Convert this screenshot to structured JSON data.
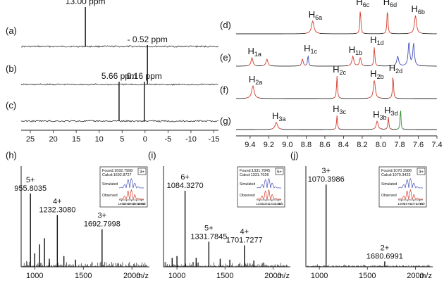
{
  "chart_data": [
    {
      "id": "p31",
      "type": "line",
      "x_axis": {
        "ticks": [
          25,
          20,
          15,
          10,
          5,
          0,
          -5,
          -10,
          -15
        ],
        "range": [
          27,
          -16
        ],
        "reversed": true
      },
      "spectra": [
        {
          "label": "(a)",
          "peaks": [
            {
              "x": 13.0,
              "h": 1.0,
              "text": "13.00 ppm"
            }
          ]
        },
        {
          "label": "(b)",
          "peaks": [
            {
              "x": -0.52,
              "h": 1.0,
              "text": "- 0.52 ppm"
            }
          ]
        },
        {
          "label": "(c)",
          "peaks": [
            {
              "x": 5.66,
              "h": 1.0,
              "text": "5.66 ppm"
            },
            {
              "x": 0.16,
              "h": 1.0,
              "text": "0.16 ppm"
            }
          ]
        }
      ]
    },
    {
      "id": "h1",
      "type": "line",
      "x_axis": {
        "ticks": [
          9.4,
          9.2,
          9.0,
          8.8,
          8.6,
          8.4,
          8.2,
          8.0,
          7.8,
          7.6,
          7.4
        ],
        "range": [
          9.55,
          7.4
        ],
        "reversed": true
      },
      "spectra": [
        {
          "label": "(d)",
          "peaks": [
            {
              "x": 8.73,
              "h": 0.45,
              "w": 0.016,
              "color": "#d43a2a",
              "text": "H6a",
              "sub": "6a"
            },
            {
              "x": 8.22,
              "h": 0.9,
              "w": 0.006,
              "color": "#d43a2a",
              "text": "H6c",
              "sub": "6c"
            },
            {
              "x": 7.93,
              "h": 0.9,
              "w": 0.006,
              "color": "#d43a2a",
              "text": "H6d",
              "sub": "6d"
            },
            {
              "x": 7.63,
              "h": 0.65,
              "w": 0.013,
              "color": "#d43a2a",
              "text": "H6b",
              "sub": "6b"
            }
          ]
        },
        {
          "label": "(e)",
          "peaks": [
            {
              "x": 9.38,
              "h": 0.3,
              "w": 0.012,
              "color": "#d43a2a",
              "text": "H1a",
              "sub": "1a"
            },
            {
              "x": 9.22,
              "h": 0.25,
              "w": 0.012,
              "color": "#d43a2a",
              "text": "",
              "sub": ""
            },
            {
              "x": 8.84,
              "h": 0.25,
              "w": 0.01,
              "color": "#d43a2a",
              "text": "",
              "sub": ""
            },
            {
              "x": 8.78,
              "h": 0.4,
              "w": 0.006,
              "color": "#4750b8",
              "text": "H1c",
              "sub": "1c"
            },
            {
              "x": 8.3,
              "h": 0.35,
              "w": 0.012,
              "color": "#d43a2a",
              "text": "H1b",
              "sub": "1b"
            },
            {
              "x": 8.22,
              "h": 0.3,
              "w": 0.01,
              "color": "#d43a2a",
              "text": "",
              "sub": ""
            },
            {
              "x": 8.07,
              "h": 0.7,
              "w": 0.006,
              "color": "#d43a2a",
              "text": "H1d",
              "sub": "1d"
            },
            {
              "x": 7.82,
              "h": 0.35,
              "w": 0.012,
              "color": "#4750b8",
              "text": "",
              "sub": ""
            },
            {
              "x": 7.7,
              "h": 0.85,
              "w": 0.01,
              "color": "#4750b8",
              "text": "",
              "sub": ""
            },
            {
              "x": 7.65,
              "h": 0.8,
              "w": 0.01,
              "color": "#4750b8",
              "text": "",
              "sub": ""
            }
          ]
        },
        {
          "label": "(f)",
          "peaks": [
            {
              "x": 9.37,
              "h": 0.45,
              "w": 0.016,
              "color": "#d43a2a",
              "text": "H2a",
              "sub": "2a"
            },
            {
              "x": 8.47,
              "h": 0.8,
              "w": 0.006,
              "color": "#d43a2a",
              "text": "H2c",
              "sub": "2c"
            },
            {
              "x": 8.07,
              "h": 0.65,
              "w": 0.012,
              "color": "#d43a2a",
              "text": "H2b",
              "sub": "2b"
            },
            {
              "x": 7.87,
              "h": 0.85,
              "w": 0.006,
              "color": "#d43a2a",
              "text": "H2d",
              "sub": "2d"
            }
          ]
        },
        {
          "label": "(g)",
          "peaks": [
            {
              "x": 9.12,
              "h": 0.25,
              "w": 0.016,
              "color": "#d43a2a",
              "text": "H3a",
              "sub": "3a"
            },
            {
              "x": 8.47,
              "h": 0.5,
              "w": 0.006,
              "color": "#d43a2a",
              "text": "H3c",
              "sub": "3c"
            },
            {
              "x": 8.04,
              "h": 0.3,
              "w": 0.012,
              "color": "#d43a2a",
              "text": "H3b",
              "sub": "3b"
            },
            {
              "x": 7.92,
              "h": 0.45,
              "w": 0.006,
              "color": "#d43a2a",
              "text": "H3d",
              "sub": "3d"
            },
            {
              "x": 7.79,
              "h": 0.8,
              "w": 0.005,
              "color": "#2e8a2e",
              "text": "",
              "sub": ""
            }
          ]
        }
      ]
    },
    {
      "id": "h",
      "label": "(h)",
      "type": "bar",
      "x_axis": {
        "ticks": [
          1000,
          1500,
          2000
        ],
        "range": [
          860,
          2180
        ],
        "unit": "m/z"
      },
      "peaks": [
        {
          "x": 955.8035,
          "h": 0.82,
          "text": "955.8035",
          "charge": "5+"
        },
        {
          "x": 1232.308,
          "h": 0.58,
          "text": "1232.3080",
          "charge": "4+"
        },
        {
          "x": 1692.7998,
          "h": 0.42,
          "text": "1692.7998",
          "charge": "3+"
        },
        {
          "x": 1050,
          "h": 0.25
        },
        {
          "x": 1100,
          "h": 0.32
        },
        {
          "x": 1300,
          "h": 0.12
        },
        {
          "x": 1000,
          "h": 0.15
        },
        {
          "x": 1150,
          "h": 0.09
        },
        {
          "x": 1420,
          "h": 0.08
        }
      ],
      "inset": {
        "found": "Found:1692.7998",
        "calcd": "Calcd:1692.8727",
        "charge": "3+",
        "simulated": "Simulated",
        "observed": "Observed",
        "ticks": [
          "1691",
          "1692",
          "1693",
          "1694",
          "1695"
        ],
        "unit": "m/z"
      }
    },
    {
      "id": "i",
      "label": "(i)",
      "type": "bar",
      "x_axis": {
        "ticks": [
          1000,
          1500,
          2000
        ],
        "range": [
          860,
          2180
        ],
        "unit": "m/z"
      },
      "peaks": [
        {
          "x": 1084.327,
          "h": 0.85,
          "text": "1084.3270",
          "charge": "6+"
        },
        {
          "x": 1331.7845,
          "h": 0.28,
          "text": "1331.7845",
          "charge": "5+"
        },
        {
          "x": 1701.7277,
          "h": 0.24,
          "text": "1701.7277",
          "charge": "4+"
        },
        {
          "x": 1000,
          "h": 0.12
        },
        {
          "x": 1200,
          "h": 0.1
        },
        {
          "x": 1450,
          "h": 0.09
        },
        {
          "x": 1550,
          "h": 0.08
        },
        {
          "x": 1800,
          "h": 0.07
        },
        {
          "x": 950,
          "h": 0.1
        }
      ],
      "inset": {
        "found": "Found:1331.7845",
        "calcd": "Calcd:1331.7026",
        "charge": "5+",
        "simulated": "Simulated",
        "observed": "Observed",
        "ticks": [
          "1330",
          "1331",
          "1332",
          "1333"
        ],
        "unit": "m/z"
      }
    },
    {
      "id": "j",
      "label": "(j)",
      "type": "bar",
      "x_axis": {
        "ticks": [
          1000,
          1500,
          2000
        ],
        "range": [
          860,
          2180
        ],
        "unit": "m/z"
      },
      "peaks": [
        {
          "x": 1070.3986,
          "h": 0.92,
          "text": "1070.3986",
          "charge": "3+"
        },
        {
          "x": 1680.6991,
          "h": 0.06,
          "text": "1680.6991",
          "charge": "2+"
        }
      ],
      "inset": {
        "found": "Found:1070.3986",
        "calcd": "Calcd:1070.3423",
        "charge": "3+",
        "simulated": "Simulated",
        "observed": "Observed",
        "ticks": [
          "1069",
          "1070",
          "1071",
          "1072"
        ],
        "unit": "m/z"
      }
    }
  ],
  "colors": {
    "red": "#d43a2a",
    "blue": "#4750b8",
    "green": "#2e8a2e",
    "black": "#111111"
  }
}
